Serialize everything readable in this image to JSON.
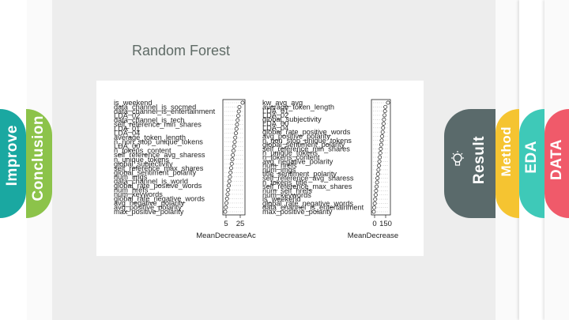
{
  "slide": {
    "title": "Random Forest"
  },
  "tabs": {
    "improve": {
      "label": "Improve",
      "color": "#1aa8a1"
    },
    "conclusion": {
      "label": "Conclusion",
      "color": "#8cc34a"
    },
    "result": {
      "label": "Result",
      "color": "#5a6a6b"
    },
    "method": {
      "label": "Method",
      "color": "#f5c431"
    },
    "eda": {
      "label": "EDA",
      "color": "#3ec9b8"
    },
    "data": {
      "label": "DATA",
      "color": "#f05a6a"
    }
  },
  "chart_data": [
    {
      "type": "scatter",
      "title": "",
      "xlabel": "MeanDecreaseAc",
      "ylabel": "",
      "xticks": [
        "5",
        "25"
      ],
      "variables": [
        "is_weekend",
        "data_channel_is_socmed",
        "data_channel_is_entertainment",
        "LDA_02",
        "data_channel_is_tech",
        "self_reference_min_shares",
        "LDA_01",
        "LDA_04",
        "average_token_length",
        "n_non_stop_unique_tokens",
        "LDA_00",
        "n_tokens_content",
        "self_reference_avg_sharess",
        "n_unique_tokens",
        "global_subjectivity",
        "self_reference_max_shares",
        "global_sentiment_polarity",
        "num_imgs",
        "data_channel_is_world",
        "global_rate_positive_words",
        "num_hrefs",
        "num_keywords",
        "global_rate_negative_words",
        "avg_negative_polarity",
        "avg_positive_polarity",
        "max_positive_polarity"
      ]
    },
    {
      "type": "scatter",
      "title": "",
      "xlabel": "MeanDecrease",
      "ylabel": "",
      "xticks": [
        "0",
        "150"
      ],
      "variables": [
        "kw_avg_avg",
        "average_token_length",
        "LDA_01",
        "LDA_02",
        "global_subjectivity",
        "LDA_00",
        "LDA_04",
        "global_rate_positive_words",
        "avg_positive_polarity",
        "n_non_stop_unique_tokens",
        "global_sentiment_polarity",
        "self_reference_min_shares",
        "n_unique_tokens",
        "n_tokens_content",
        "avg_negative_polarity",
        "num_hrefs",
        "num_imgs",
        "title_sentiment_polarity",
        "self_reference_avg_sharess",
        "n_tokens_title",
        "self_reference_max_shares",
        "num_self_hrefs",
        "num_keywords",
        "is_weekend",
        "global_rate_negative_words",
        "data_channel_is_entertainment",
        "max_positive_polarity"
      ]
    }
  ]
}
